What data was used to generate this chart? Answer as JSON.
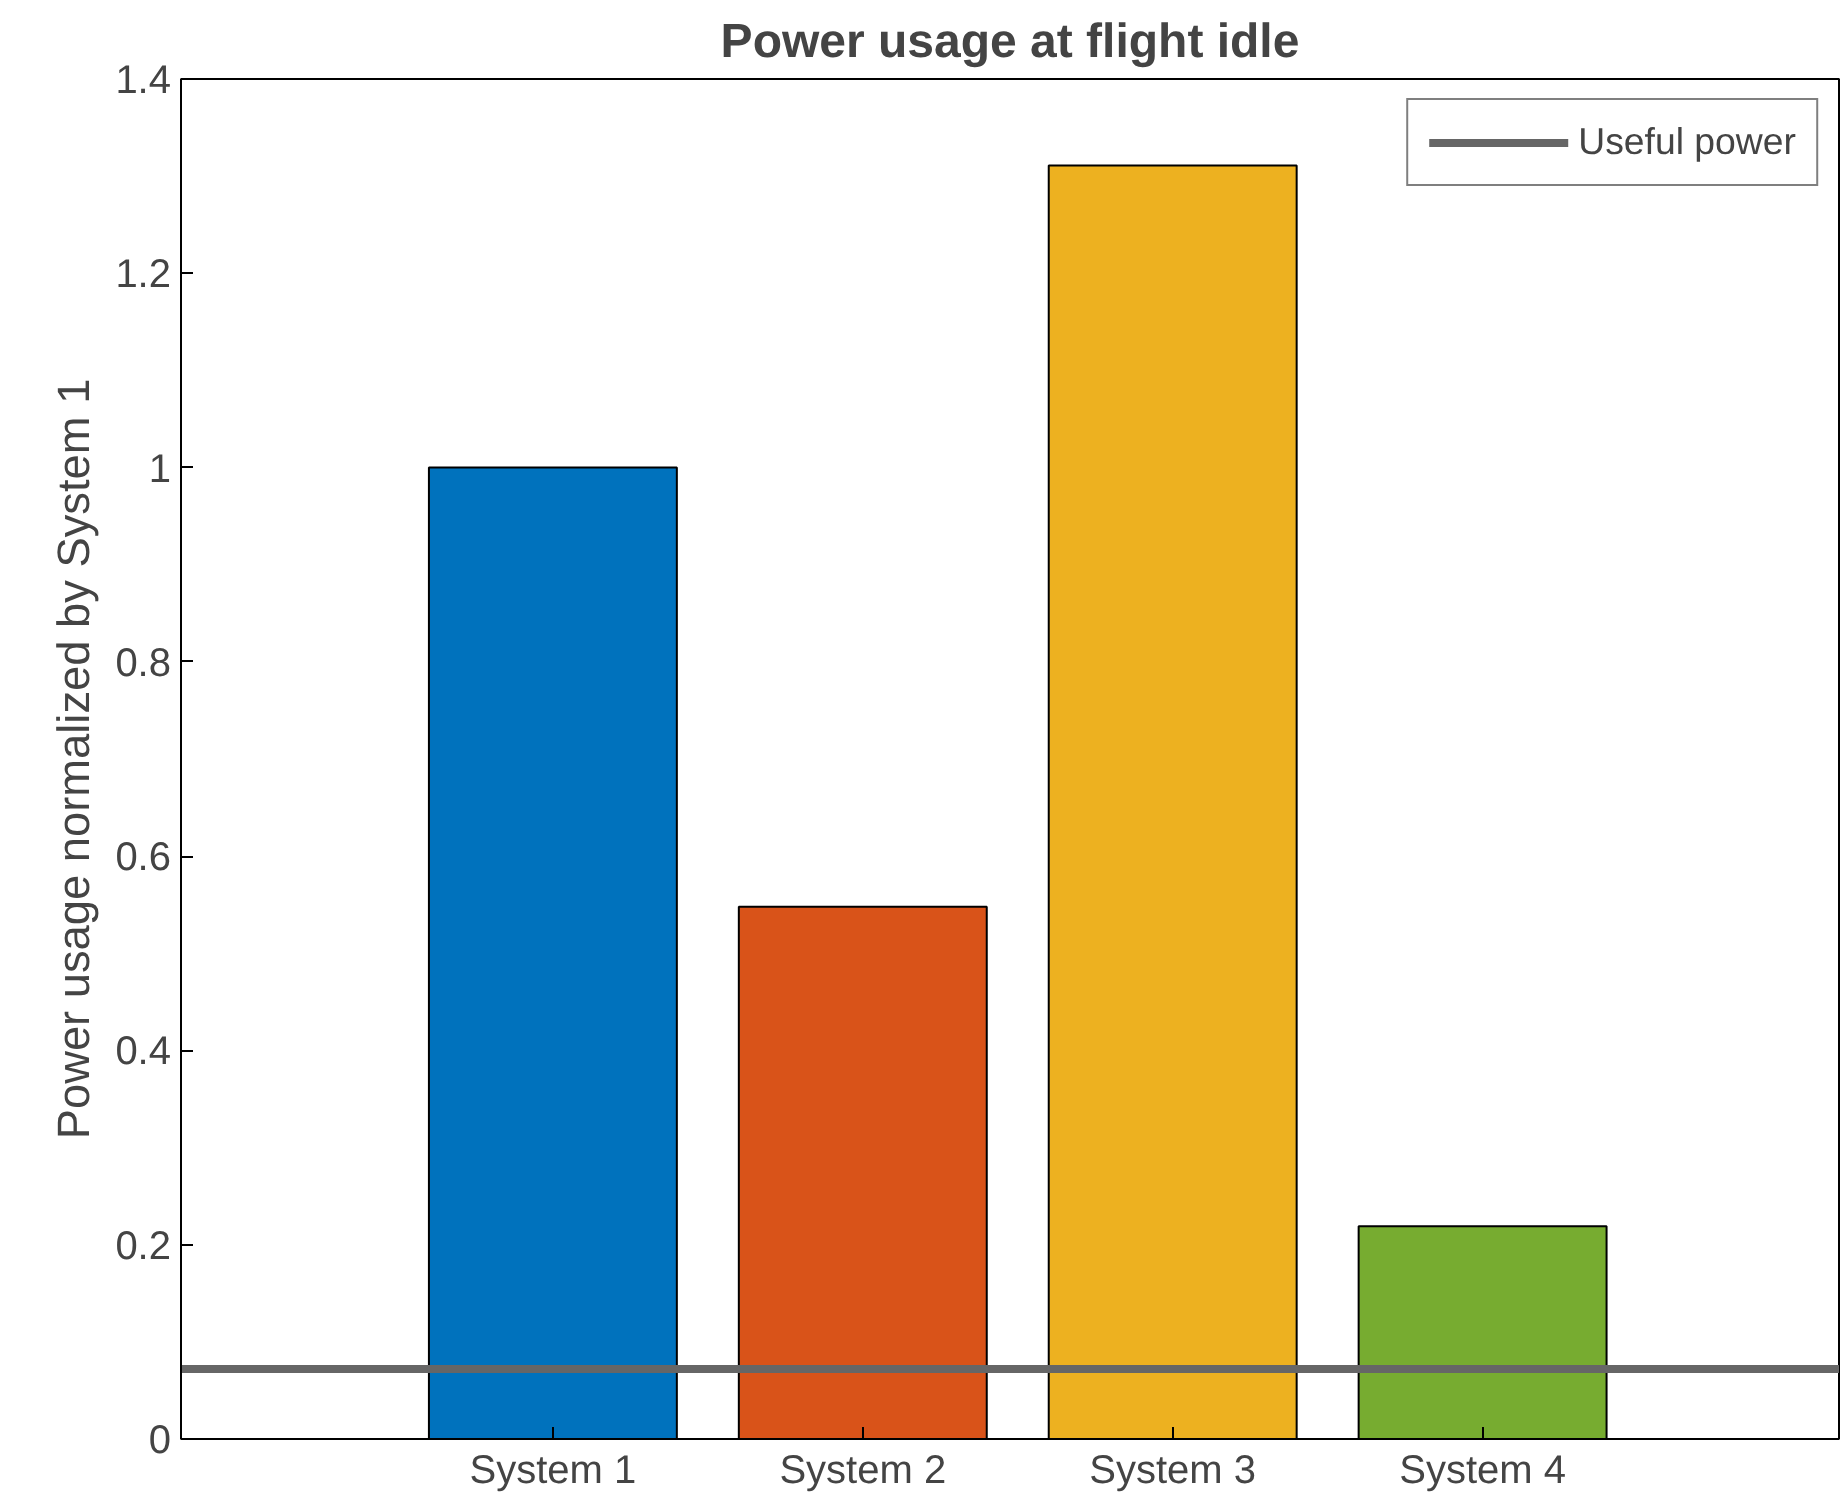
{
  "chart_data": {
    "type": "bar",
    "title": "Power usage at flight idle",
    "ylabel": "Power usage normalized by System 1",
    "categories": [
      "System 1",
      "System 2",
      "System 3",
      "System 4"
    ],
    "values": [
      1.0,
      0.548,
      1.311,
      0.219
    ],
    "colors": [
      "#0072bd",
      "#d95319",
      "#edb120",
      "#77ac30"
    ],
    "ylim": [
      0,
      1.4
    ],
    "yticks": [
      0,
      0.2,
      0.4,
      0.6,
      0.8,
      1,
      1.2,
      1.4
    ],
    "ref_lines": [
      {
        "axis": "y",
        "value": 0.072,
        "label": "Useful power",
        "color": "#666666"
      }
    ],
    "legend": "top right",
    "grid": false
  }
}
